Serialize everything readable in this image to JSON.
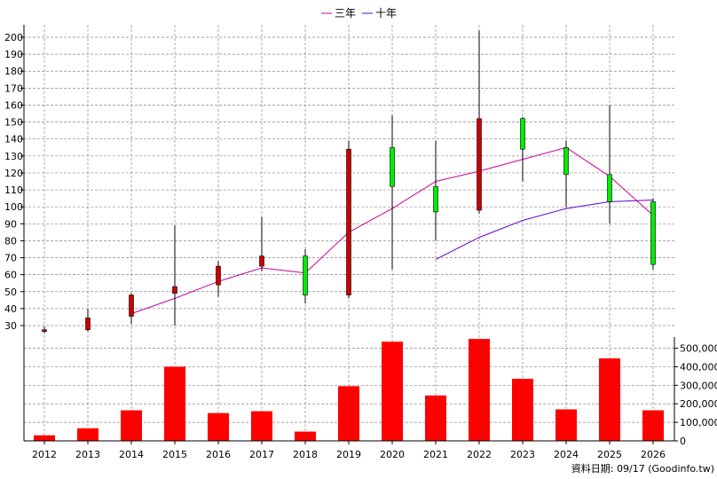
{
  "chart_data": {
    "type": "candlestick",
    "x": [
      "2012",
      "2013",
      "2014",
      "2015",
      "2016",
      "2017",
      "2018",
      "2019",
      "2020",
      "2021",
      "2022",
      "2023",
      "2024",
      "2025",
      "2026"
    ],
    "price": {
      "ylim": [
        20,
        205
      ],
      "yticks": [
        30,
        40,
        50,
        60,
        70,
        80,
        90,
        100,
        110,
        120,
        130,
        140,
        150,
        160,
        170,
        180,
        190,
        200
      ],
      "grid": true,
      "candles": [
        {
          "x": "2012",
          "open": 26.5,
          "close": 27.5,
          "low": 25.5,
          "high": 29.5
        },
        {
          "x": "2013",
          "open": 27.5,
          "close": 34.5,
          "low": 26.5,
          "high": 40
        },
        {
          "x": "2014",
          "open": 35.5,
          "close": 48,
          "low": 31,
          "high": 49
        },
        {
          "x": "2015",
          "open": 49,
          "close": 53,
          "low": 30,
          "high": 89
        },
        {
          "x": "2016",
          "open": 54,
          "close": 65,
          "low": 47,
          "high": 68
        },
        {
          "x": "2017",
          "open": 65,
          "close": 71,
          "low": 62,
          "high": 94
        },
        {
          "x": "2018",
          "open": 71,
          "close": 48,
          "low": 43,
          "high": 75
        },
        {
          "x": "2019",
          "open": 48,
          "close": 134,
          "low": 46,
          "high": 139
        },
        {
          "x": "2020",
          "open": 135,
          "close": 112,
          "low": 63,
          "high": 154
        },
        {
          "x": "2021",
          "open": 112,
          "close": 97,
          "low": 80,
          "high": 139
        },
        {
          "x": "2022",
          "open": 98,
          "close": 152,
          "low": 96,
          "high": 204
        },
        {
          "x": "2023",
          "open": 152,
          "close": 134,
          "low": 115,
          "high": 153
        },
        {
          "x": "2024",
          "open": 135,
          "close": 119,
          "low": 100,
          "high": 139
        },
        {
          "x": "2025",
          "open": 119,
          "close": 103,
          "low": 90,
          "high": 160
        },
        {
          "x": "2026",
          "open": 103,
          "close": 66,
          "low": 63,
          "high": 105
        }
      ],
      "series": [
        {
          "name": "三年",
          "color": "#cc0099",
          "values": [
            null,
            null,
            37,
            46,
            56,
            64,
            61,
            85,
            99,
            115,
            121,
            128,
            135,
            118,
            95
          ]
        },
        {
          "name": "十年",
          "color": "#6600cc",
          "values": [
            null,
            null,
            null,
            null,
            null,
            null,
            null,
            null,
            null,
            69,
            82,
            92,
            99,
            103,
            104
          ]
        }
      ]
    },
    "volume": {
      "ylim": [
        0,
        560000
      ],
      "yticks": [
        0,
        100000,
        200000,
        300000,
        400000,
        500000
      ],
      "ytick_labels": [
        "0",
        "100,000",
        "200,000",
        "300,000",
        "400,000",
        "500,000"
      ],
      "color": "#ff0000",
      "values": [
        30000,
        68000,
        165000,
        400000,
        150000,
        160000,
        50000,
        295000,
        535000,
        245000,
        550000,
        335000,
        170000,
        445000,
        165000
      ]
    },
    "colors": {
      "up": "#cc0000",
      "down": "#00ee00",
      "wick": "#000000",
      "grid": "#888888",
      "volume": "#ff0000"
    }
  },
  "legend": {
    "items": [
      {
        "name": "三年",
        "color": "#cc0099"
      },
      {
        "name": "十年",
        "color": "#6600cc"
      }
    ]
  },
  "source_text": "資料日期: 09/17  (Goodinfo.tw)"
}
